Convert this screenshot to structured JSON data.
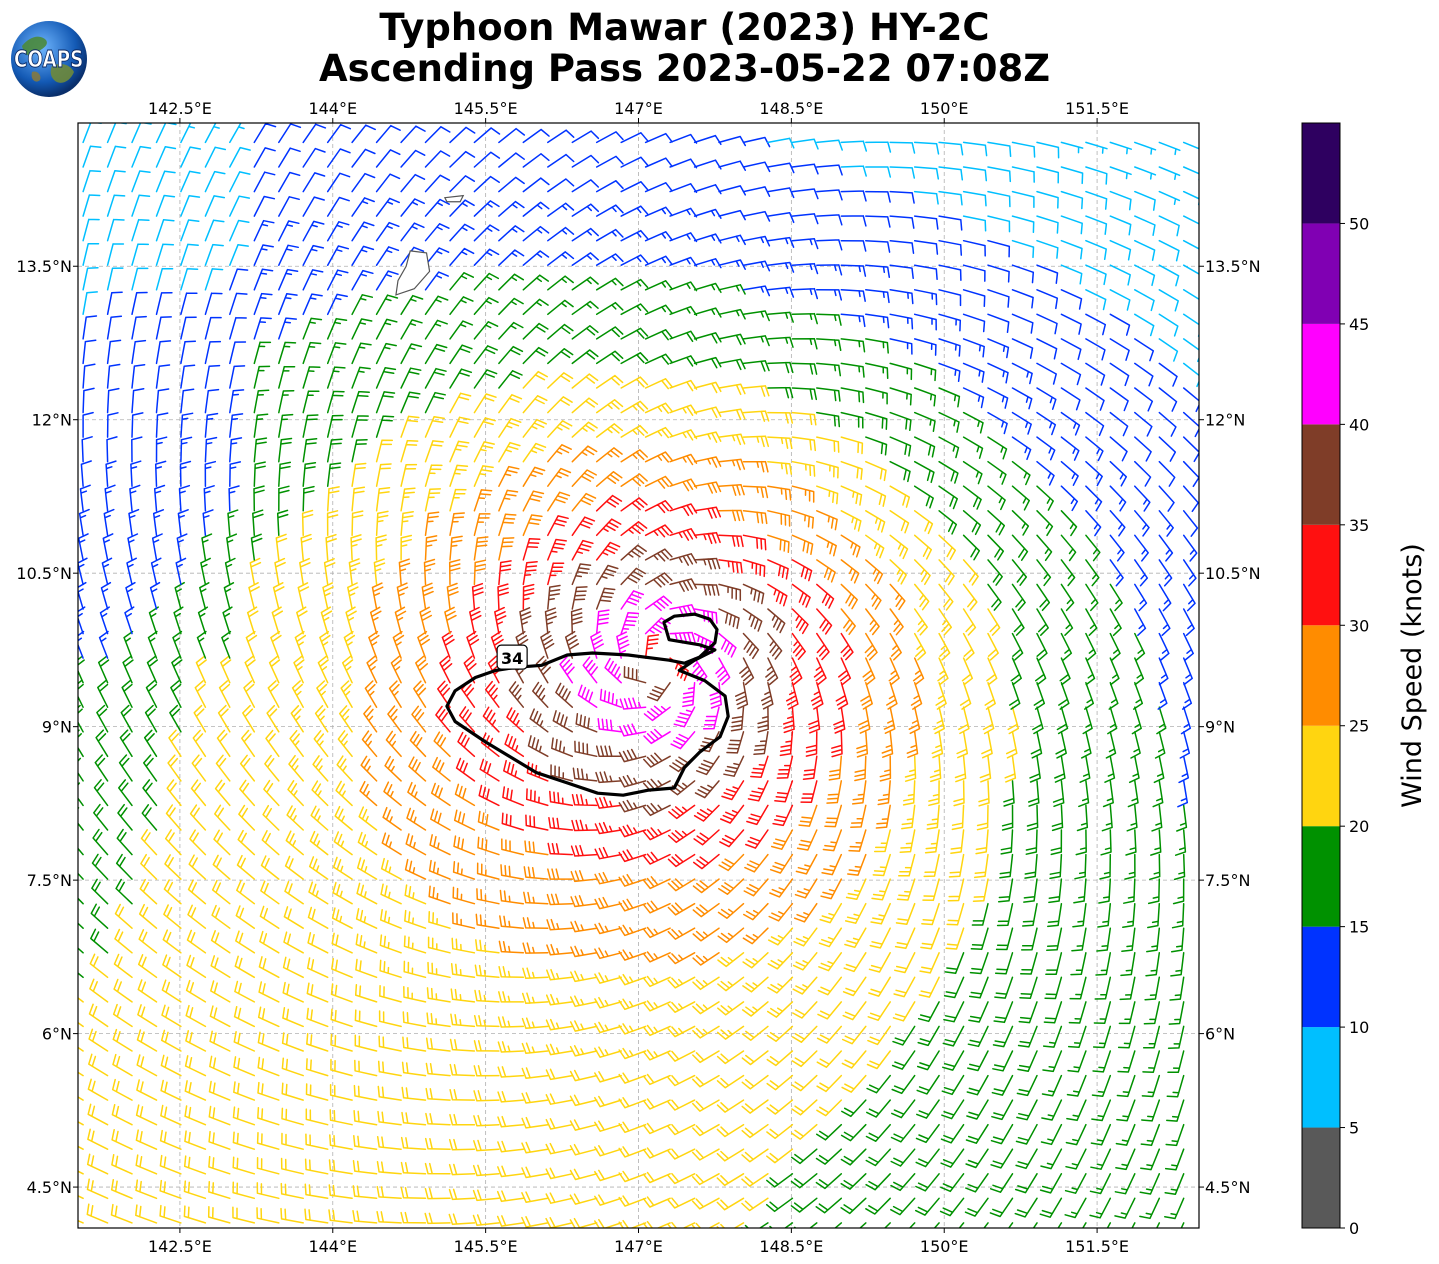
{
  "header": {
    "title_line1": "Typhoon Mawar (2023) HY-2C",
    "title_line2": "Ascending Pass 2023-05-22 07:08Z"
  },
  "logo": {
    "text": "COAPS",
    "icon": "globe-icon"
  },
  "map": {
    "lon_range": [
      141.5,
      152.5
    ],
    "lat_range": [
      4.1,
      14.9
    ],
    "grid": true,
    "lon_ticks": [
      142.5,
      144.0,
      145.5,
      147.0,
      148.5,
      150.0,
      151.5
    ],
    "lon_tick_labels": [
      "142.5°E",
      "144°E",
      "145.5°E",
      "147°E",
      "148.5°E",
      "150°E",
      "151.5°E"
    ],
    "lat_ticks": [
      13.5,
      12.0,
      10.5,
      9.0,
      7.5,
      6.0,
      4.5
    ],
    "lat_tick_labels": [
      "13.5°N",
      "12°N",
      "10.5°N",
      "9°N",
      "7.5°N",
      "6°N",
      "4.5°N"
    ],
    "storm_center": {
      "lon": 147.2,
      "lat": 9.6
    },
    "contour_label": "34",
    "contour_level_kt": 34
  },
  "colorbar": {
    "title": "Wind Speed (knots)",
    "bins": [
      {
        "from": 0,
        "to": 5,
        "color": "#595959"
      },
      {
        "from": 5,
        "to": 10,
        "color": "#00bfff"
      },
      {
        "from": 10,
        "to": 15,
        "color": "#0033ff"
      },
      {
        "from": 15,
        "to": 20,
        "color": "#009100"
      },
      {
        "from": 20,
        "to": 25,
        "color": "#ffd510"
      },
      {
        "from": 25,
        "to": 30,
        "color": "#ff8c00"
      },
      {
        "from": 30,
        "to": 35,
        "color": "#ff1010"
      },
      {
        "from": 35,
        "to": 40,
        "color": "#7f3d28"
      },
      {
        "from": 40,
        "to": 45,
        "color": "#ff00ff"
      },
      {
        "from": 45,
        "to": 50,
        "color": "#8000b3"
      },
      {
        "from": 50,
        "to": 55,
        "color": "#2e0060"
      }
    ],
    "tick_labels": [
      "0",
      "5",
      "10",
      "15",
      "20",
      "25",
      "30",
      "35",
      "40",
      "45",
      "50"
    ]
  }
}
